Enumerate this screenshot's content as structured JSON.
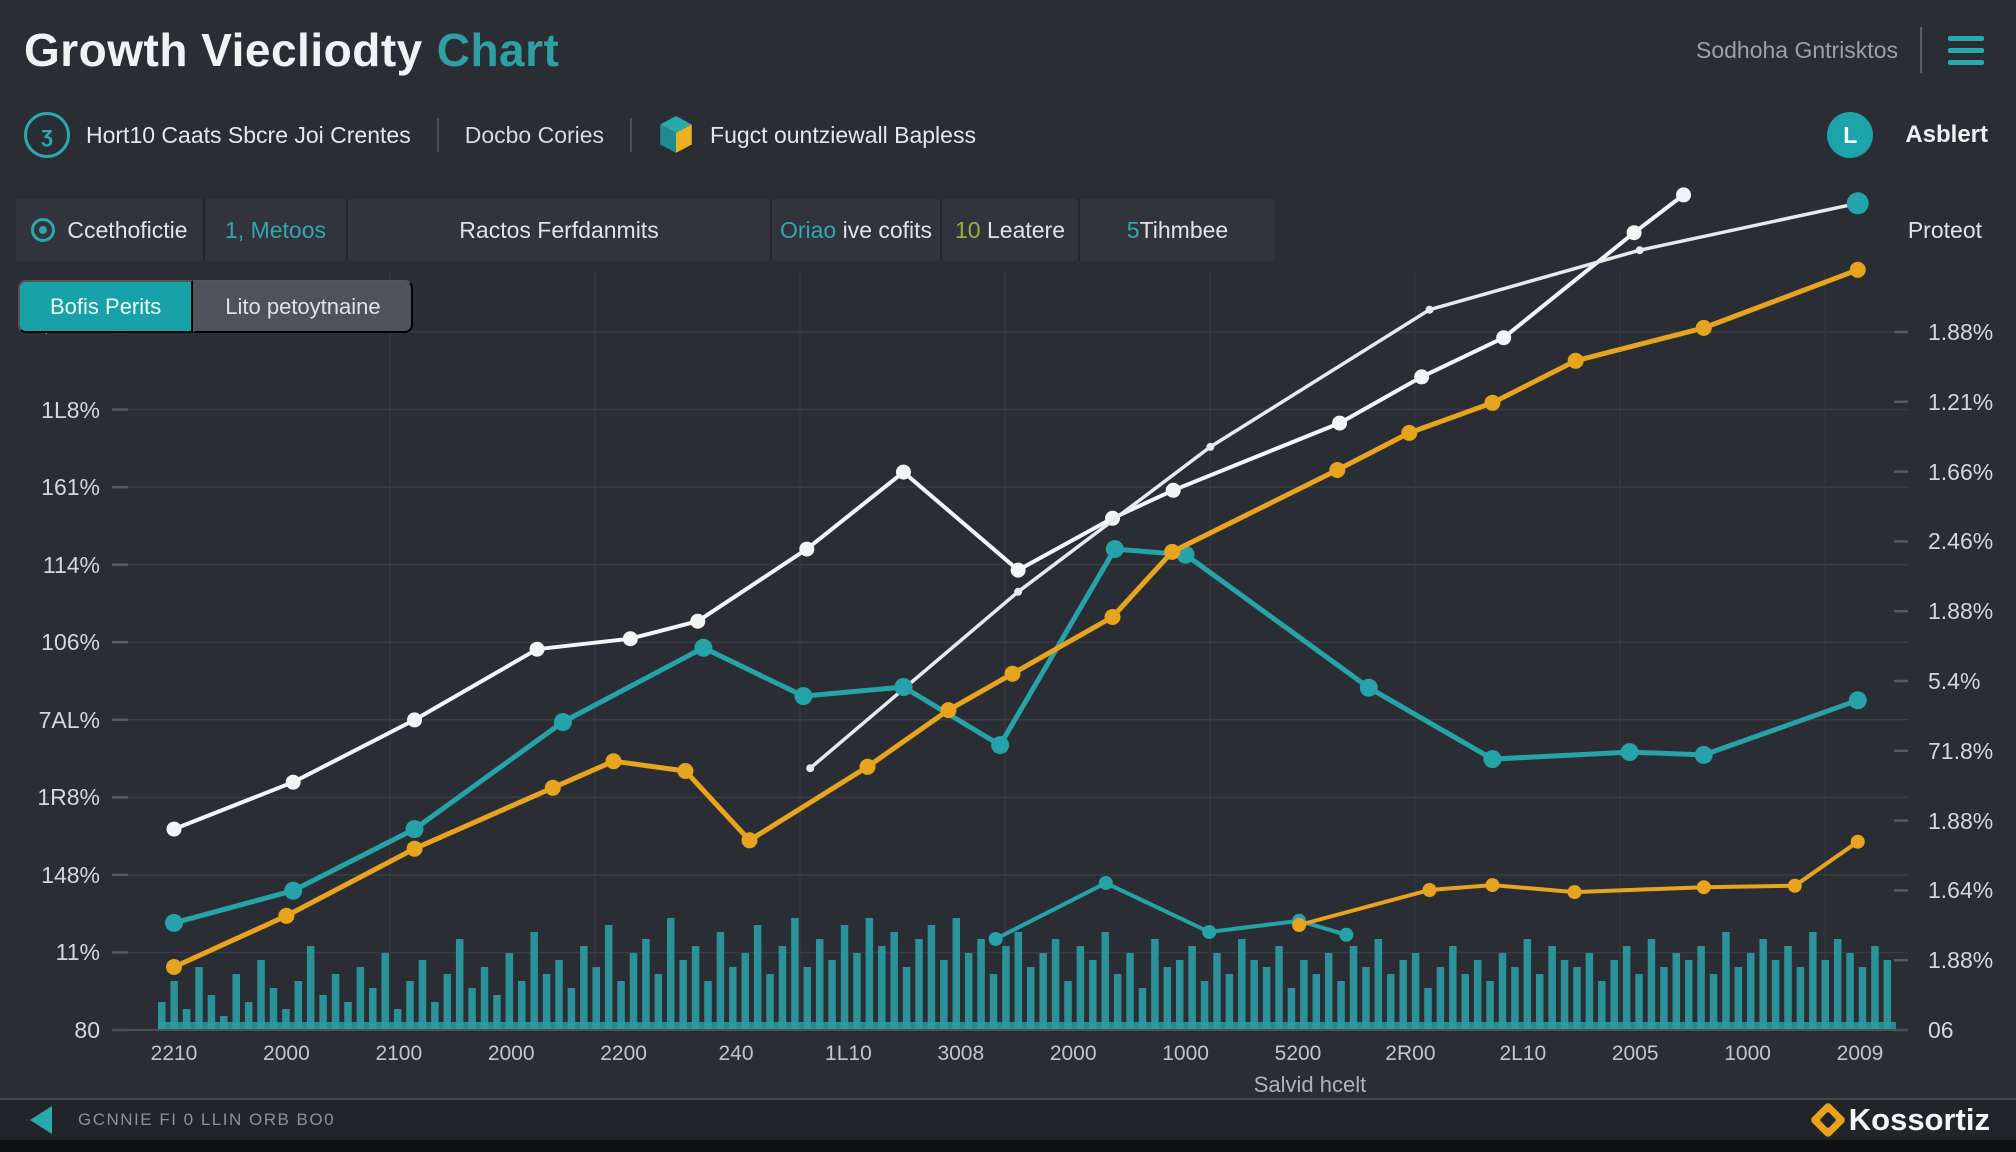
{
  "header": {
    "title_main": "Growth Viecliodty",
    "title_accent": "Chart",
    "right_text": "Sodhoha Gntrisktos"
  },
  "toolbar": {
    "badge_glyph": "ʒ",
    "item1": "Hort10 Caats Sbcre Joi Crentes",
    "item2": "Docbo Cories",
    "item3": "Fugct ountziewall Bapless",
    "user_initial": "L",
    "user_name": "Asblert"
  },
  "tabs": {
    "items": [
      {
        "icon": "target-icon",
        "prefix": "",
        "prefix_class": "",
        "label": "Ccethofictie"
      },
      {
        "icon": "",
        "prefix": "1,",
        "prefix_class": "teal",
        "label": "Metoos",
        "label_class": "teal"
      },
      {
        "icon": "",
        "prefix": "",
        "prefix_class": "",
        "label": "Ractos Ferfdanmits"
      },
      {
        "icon": "",
        "prefix": "Oriao",
        "prefix_class": "teal",
        "label": "ive cofits"
      },
      {
        "icon": "",
        "prefix": "10",
        "prefix_class": "green",
        "label": "Leatere"
      },
      {
        "icon": "",
        "prefix": "5",
        "prefix_class": "teal",
        "label": "Tihmbee"
      }
    ],
    "right_label": "Proteot"
  },
  "controls": {
    "primary_button": "Bofis Perits",
    "secondary_button": "Lito petoytnaine"
  },
  "colors": {
    "accent_teal": "#26a3a8",
    "accent_yellow": "#e7a41e",
    "line_white": "#f3f4f5",
    "bars_teal": "#2a9ba1"
  },
  "chart_data": {
    "type": "line+bar",
    "x_axis_title": "Salvid hcelt",
    "x_tick_labels": [
      "2210",
      "2000",
      "2100",
      "2000",
      "2200",
      "240",
      "1L10",
      "3008",
      "2000",
      "1000",
      "5200",
      "2R00",
      "2L10",
      "2005",
      "1000",
      "2009"
    ],
    "y_left_labels": [
      "5,0110%",
      "1L8%",
      "161%",
      "114%",
      "106%",
      "7AL%",
      "1R8%",
      "148%",
      "11%",
      "80"
    ],
    "y_right_labels": [
      "1.88%",
      "1.21%",
      "1.66%",
      "2.46%",
      "1.88%",
      "5.4%",
      "71.8%",
      "1.88%",
      "1.64%",
      "1.88%",
      "06"
    ],
    "grid": true,
    "legend": "none",
    "series": [
      {
        "name": "white-dotted-line",
        "color": "#f3f4f5",
        "width": 4,
        "dot": 7.5,
        "points": [
          [
            0,
            28.7
          ],
          [
            1.06,
            35.4
          ],
          [
            2.14,
            44.3
          ],
          [
            3.23,
            54.4
          ],
          [
            4.06,
            55.9
          ],
          [
            4.66,
            58.4
          ],
          [
            5.63,
            68.7
          ],
          [
            6.49,
            79.7
          ],
          [
            7.51,
            65.7
          ],
          [
            8.35,
            73.1
          ],
          [
            8.89,
            77.1
          ],
          [
            10.37,
            86.7
          ],
          [
            11.1,
            93.3
          ],
          [
            11.83,
            98.9
          ],
          [
            12.99,
            113.9
          ],
          [
            13.43,
            119.3
          ]
        ]
      },
      {
        "name": "white-thin-line",
        "color": "#e7e9eb",
        "width": 3.5,
        "dot": 4,
        "points": [
          [
            5.66,
            37.4
          ],
          [
            7.51,
            62.6
          ],
          [
            9.22,
            83.3
          ],
          [
            11.17,
            102.9
          ],
          [
            13.04,
            111.4
          ],
          [
            14.98,
            118.1
          ]
        ],
        "end_dot": {
          "color": "#26a3a8",
          "r": 11
        }
      },
      {
        "name": "teal-main-line",
        "color": "#26a3a8",
        "width": 5,
        "dot": 9,
        "points": [
          [
            0,
            15.3
          ],
          [
            1.06,
            19.9
          ],
          [
            2.14,
            28.7
          ],
          [
            3.46,
            44
          ],
          [
            4.71,
            54.6
          ],
          [
            5.6,
            47.7
          ],
          [
            6.49,
            49
          ],
          [
            7.35,
            40.7
          ],
          [
            8.37,
            68.7
          ],
          [
            9,
            67.9
          ],
          [
            10.63,
            48.9
          ],
          [
            11.73,
            38.7
          ],
          [
            12.95,
            39.7
          ],
          [
            13.61,
            39.3
          ],
          [
            14.98,
            47.1
          ]
        ]
      },
      {
        "name": "yellow-main-line",
        "color": "#e7a41e",
        "width": 5,
        "dot": 8,
        "points": [
          [
            0,
            9
          ],
          [
            1,
            16.3
          ],
          [
            2.14,
            25.9
          ],
          [
            3.37,
            34.6
          ],
          [
            3.91,
            38.4
          ],
          [
            4.55,
            37
          ],
          [
            5.12,
            27.1
          ],
          [
            6.17,
            37.6
          ],
          [
            6.89,
            45.7
          ],
          [
            7.46,
            50.9
          ],
          [
            8.35,
            59
          ],
          [
            8.88,
            68.3
          ],
          [
            10.35,
            80
          ],
          [
            10.99,
            85.3
          ],
          [
            11.73,
            89.6
          ],
          [
            12.47,
            95.6
          ],
          [
            13.61,
            100.3
          ],
          [
            14.98,
            108.6
          ]
        ]
      },
      {
        "name": "teal-low-line",
        "color": "#26a3a8",
        "width": 4,
        "dot": 7,
        "points": [
          [
            7.31,
            13
          ],
          [
            8.29,
            21
          ],
          [
            9.21,
            14
          ],
          [
            10.01,
            15.6
          ],
          [
            10.43,
            13.6
          ]
        ]
      },
      {
        "name": "yellow-low-line",
        "color": "#e7a41e",
        "width": 4,
        "dot": 7,
        "points": [
          [
            10.01,
            15
          ],
          [
            11.17,
            20
          ],
          [
            11.73,
            20.7
          ],
          [
            12.46,
            19.7
          ],
          [
            13.61,
            20.4
          ],
          [
            14.42,
            20.6
          ],
          [
            14.98,
            26.9
          ]
        ]
      }
    ],
    "bars": {
      "color": "#2a9ba1",
      "values": [
        4,
        7,
        3,
        9,
        5,
        2,
        8,
        4,
        10,
        6,
        3,
        7,
        12,
        5,
        8,
        4,
        9,
        6,
        11,
        3,
        7,
        10,
        4,
        8,
        13,
        6,
        9,
        5,
        11,
        7,
        14,
        8,
        10,
        6,
        12,
        9,
        15,
        7,
        11,
        13,
        8,
        16,
        10,
        12,
        7,
        14,
        9,
        11,
        15,
        8,
        12,
        16,
        9,
        13,
        10,
        15,
        11,
        16,
        12,
        14,
        9,
        13,
        15,
        10,
        16,
        11,
        13,
        8,
        12,
        14,
        9,
        11,
        13,
        7,
        12,
        10,
        14,
        8,
        11,
        6,
        13,
        9,
        10,
        12,
        7,
        11,
        8,
        13,
        10,
        9,
        12,
        6,
        10,
        8,
        11,
        7,
        12,
        9,
        13,
        8,
        10,
        11,
        6,
        9,
        12,
        8,
        10,
        7,
        11,
        9,
        13,
        8,
        12,
        10,
        9,
        11,
        7,
        10,
        12,
        8,
        13,
        9,
        11,
        10,
        12,
        8,
        14,
        9,
        11,
        13,
        10,
        12,
        9,
        14,
        10,
        13,
        11,
        9,
        12,
        10
      ]
    }
  },
  "footer": {
    "left_text": "GCNNIE FI 0 LLIN ORB BO0",
    "brand": "Kossortiz"
  }
}
